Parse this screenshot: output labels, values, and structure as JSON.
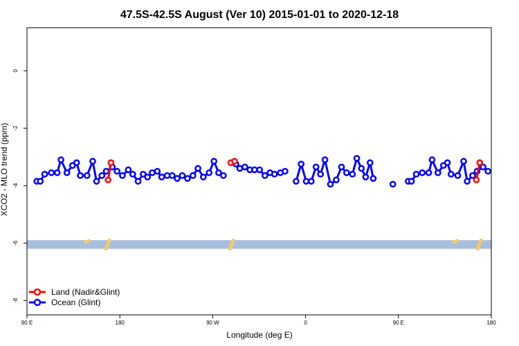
{
  "chart_data": {
    "type": "line",
    "title": "47.5S-42.5S August (Ver 10)   2015-01-01 to 2020-12-18",
    "xlabel": "Longitude (deg E)",
    "ylabel": "XCO2 - MLO trend (ppm)",
    "xlim": [
      90,
      540
    ],
    "ylim": [
      -8.5,
      1.5
    ],
    "x_ticks": [
      {
        "value": 90,
        "label": "90 E"
      },
      {
        "value": 180,
        "label": "180"
      },
      {
        "value": 270,
        "label": "90 W"
      },
      {
        "value": 360,
        "label": "0"
      },
      {
        "value": 450,
        "label": "90 E"
      },
      {
        "value": 540,
        "label": "180"
      }
    ],
    "y_ticks": [
      {
        "value": 0,
        "label": "0"
      },
      {
        "value": -2,
        "label": "-2"
      },
      {
        "value": -4,
        "label": "-4"
      },
      {
        "value": -6,
        "label": "-6"
      },
      {
        "value": -8,
        "label": "-8"
      }
    ],
    "legend": {
      "position": "bottom-left",
      "entries": [
        {
          "name": "Land (Nadir&Glint)",
          "color": "#ff0000"
        },
        {
          "name": "Ocean (Glint)",
          "color": "#0000ff"
        }
      ]
    },
    "band": {
      "y_min": -6.2,
      "y_max": -5.9,
      "color": "#a8bedd"
    },
    "land_band_marks": [
      {
        "x": 148,
        "y_top": -5.92,
        "y_bottom": -5.98
      },
      {
        "x": 168,
        "y_top": -5.9,
        "y_bottom": -6.2
      },
      {
        "x": 288,
        "y_top": -5.9,
        "y_bottom": -6.2
      },
      {
        "x": 505,
        "y_top": -5.92,
        "y_bottom": -5.98
      },
      {
        "x": 528,
        "y_top": -5.9,
        "y_bottom": -6.2
      }
    ],
    "band_color_land": "#f5c96a",
    "series": [
      {
        "name": "Land (Nadir&Glint)",
        "color": "#ff0000",
        "segments": [
          [
            [
              168.6,
              -3.8
            ],
            [
              171.4,
              -3.2
            ]
          ],
          [
            [
              287.6,
              -3.2
            ],
            [
              291.2,
              -3.15
            ]
          ],
          [
            [
              525.5,
              -3.8
            ],
            [
              528.8,
              -3.2
            ]
          ]
        ]
      },
      {
        "name": "Ocean (Glint)",
        "color": "#0000ff",
        "segments": [
          [
            [
              99.5,
              -3.85
            ],
            [
              102.9,
              -3.85
            ],
            [
              107.2,
              -3.6
            ],
            [
              113.7,
              -3.55
            ],
            [
              119.3,
              -3.55
            ],
            [
              122.9,
              -3.1
            ],
            [
              128.7,
              -3.55
            ],
            [
              134.1,
              -3.3
            ],
            [
              138.1,
              -3.2
            ],
            [
              141.7,
              -3.65
            ],
            [
              148.2,
              -3.65
            ],
            [
              153.7,
              -3.15
            ],
            [
              157.4,
              -3.85
            ],
            [
              162.6,
              -3.65
            ],
            [
              166.8,
              -3.5
            ],
            [
              172.7,
              -3.35
            ],
            [
              177.3,
              -3.5
            ],
            [
              182.5,
              -3.65
            ],
            [
              188.2,
              -3.45
            ],
            [
              192.5,
              -3.6
            ],
            [
              197.7,
              -3.85
            ],
            [
              202.6,
              -3.6
            ],
            [
              206.8,
              -3.7
            ],
            [
              211.4,
              -3.55
            ],
            [
              216.3,
              -3.5
            ],
            [
              220.6,
              -3.7
            ],
            [
              225.9,
              -3.65
            ],
            [
              230.7,
              -3.65
            ],
            [
              235.6,
              -3.75
            ],
            [
              240.5,
              -3.65
            ],
            [
              245.6,
              -3.75
            ],
            [
              250.8,
              -3.65
            ],
            [
              255.7,
              -3.4
            ],
            [
              260.9,
              -3.7
            ],
            [
              266.5,
              -3.55
            ],
            [
              271.2,
              -3.15
            ],
            [
              275.7,
              -3.55
            ],
            [
              280.3,
              -3.65
            ]
          ],
          [
            [
              292.5,
              -3.25
            ],
            [
              296.2,
              -3.4
            ],
            [
              301.2,
              -3.35
            ],
            [
              306.0,
              -3.45
            ],
            [
              310.6,
              -3.45
            ],
            [
              315.5,
              -3.45
            ],
            [
              320.6,
              -3.65
            ],
            [
              325.5,
              -3.55
            ],
            [
              329.9,
              -3.6
            ],
            [
              335.6,
              -3.55
            ],
            [
              340.1,
              -3.5
            ]
          ],
          [
            [
              350.8,
              -3.85
            ],
            [
              355.7,
              -3.25
            ],
            [
              360.6,
              -3.85
            ],
            [
              365.5,
              -3.85
            ],
            [
              370.1,
              -3.35
            ],
            [
              374.5,
              -3.6
            ],
            [
              378.8,
              -3.1
            ],
            [
              384.1,
              -3.95
            ],
            [
              389.7,
              -3.8
            ],
            [
              394.8,
              -3.35
            ],
            [
              399.7,
              -3.55
            ],
            [
              405.4,
              -3.6
            ],
            [
              409.6,
              -3.05
            ],
            [
              414.1,
              -3.4
            ],
            [
              418.2,
              -3.7
            ],
            [
              422.5,
              -3.2
            ],
            [
              425.6,
              -3.75
            ]
          ],
          [
            [
              444.6,
              -3.95
            ]
          ],
          [
            [
              459.4,
              -3.85
            ],
            [
              462.6,
              -3.85
            ],
            [
              467.3,
              -3.6
            ],
            [
              473.1,
              -3.55
            ],
            [
              479.4,
              -3.55
            ],
            [
              482.6,
              -3.1
            ],
            [
              488.2,
              -3.55
            ],
            [
              493.6,
              -3.3
            ],
            [
              497.4,
              -3.2
            ],
            [
              501.0,
              -3.6
            ],
            [
              507.5,
              -3.65
            ],
            [
              513.2,
              -3.15
            ],
            [
              516.6,
              -3.85
            ],
            [
              521.9,
              -3.65
            ],
            [
              526.2,
              -3.5
            ],
            [
              532.0,
              -3.35
            ],
            [
              536.8,
              -3.5
            ]
          ]
        ]
      }
    ]
  }
}
